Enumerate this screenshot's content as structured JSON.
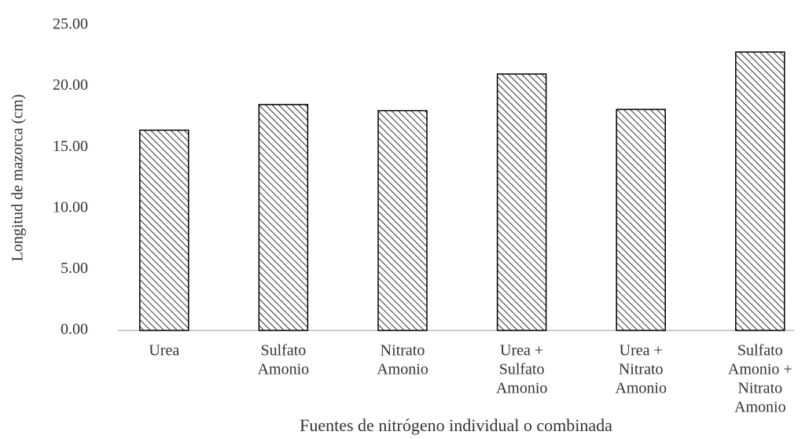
{
  "chart_data": {
    "type": "bar",
    "y_label": "Longitud de mazorca (cm)",
    "x_label": "Fuentes de nitrógeno individual o combinada",
    "categories": [
      [
        "Urea"
      ],
      [
        "Sulfato",
        "Amonio"
      ],
      [
        "Nitrato",
        "Amonio"
      ],
      [
        "Urea +",
        "Sulfato",
        "Amonio"
      ],
      [
        "Urea +",
        "Nitrato",
        "Amonio"
      ],
      [
        "Sulfato",
        "Amonio +",
        "Nitrato",
        "Amonio"
      ]
    ],
    "values": [
      16.4,
      18.5,
      18.0,
      21.0,
      18.1,
      22.8
    ],
    "color": "#000000",
    "pattern": "hatch",
    "ylim": [
      0,
      25
    ],
    "yticks": [
      {
        "value": 0,
        "label": "0.00"
      },
      {
        "value": 5,
        "label": "5.00"
      },
      {
        "value": 10,
        "label": "10.00"
      },
      {
        "value": 15,
        "label": "15.00"
      },
      {
        "value": 20,
        "label": "20.00"
      },
      {
        "value": 25,
        "label": "25.00"
      }
    ],
    "grid": false
  }
}
